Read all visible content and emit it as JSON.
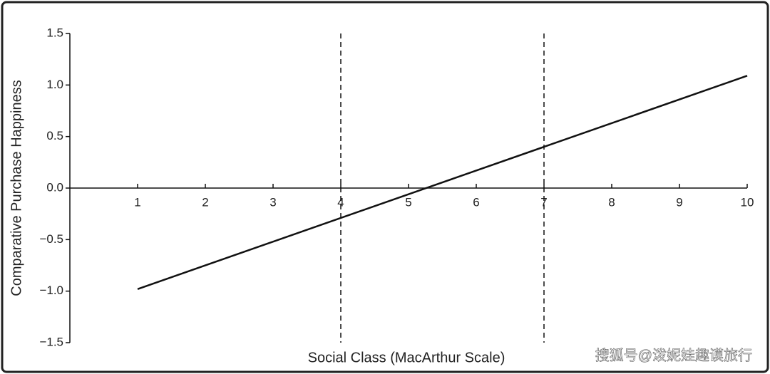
{
  "chart_data": {
    "type": "line",
    "x_label": "Social Class (MacArthur Scale)",
    "y_label": "Comparative Purchase Happiness",
    "x": [
      1,
      10
    ],
    "series": [
      {
        "color": "#111111",
        "values": [
          -0.98,
          1.09
        ]
      }
    ],
    "xlim": [
      0,
      10
    ],
    "xticks": [
      1,
      2,
      3,
      4,
      5,
      6,
      7,
      8,
      9,
      10
    ],
    "ylim": [
      -1.5,
      1.5
    ],
    "yticks": [
      {
        "value": -1.5,
        "label": "−1.5"
      },
      {
        "value": -1.0,
        "label": "−1.0"
      },
      {
        "value": -0.5,
        "label": "−0.5"
      },
      {
        "value": 0,
        "label": "0.0"
      },
      {
        "value": 0.5,
        "label": "0.5"
      },
      {
        "value": 1.0,
        "label": "1.0"
      },
      1.5
    ],
    "reference_lines": [
      4,
      7
    ],
    "watermark": "搜狐号@泼妮娃趣谟旅行"
  }
}
